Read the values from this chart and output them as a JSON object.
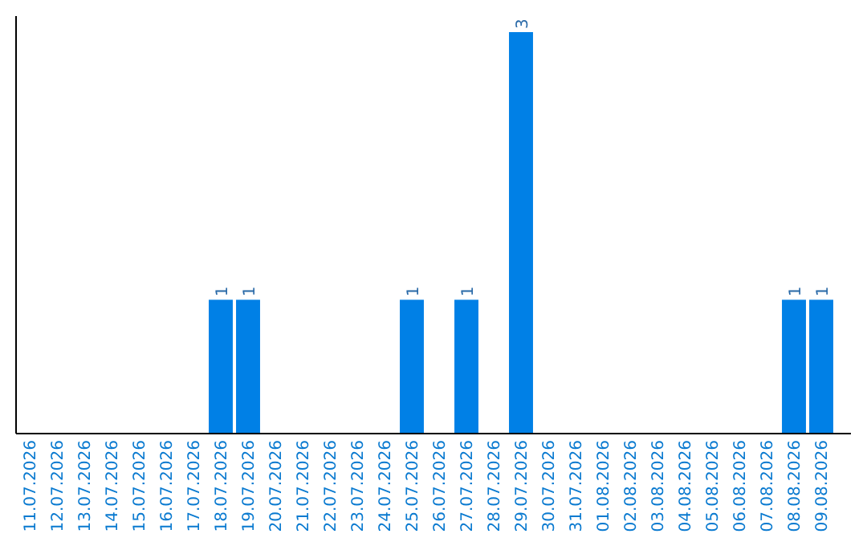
{
  "chart_data": {
    "type": "bar",
    "categories": [
      "11.07.2026",
      "12.07.2026",
      "13.07.2026",
      "14.07.2026",
      "15.07.2026",
      "16.07.2026",
      "17.07.2026",
      "18.07.2026",
      "19.07.2026",
      "20.07.2026",
      "21.07.2026",
      "22.07.2026",
      "23.07.2026",
      "24.07.2026",
      "25.07.2026",
      "26.07.2026",
      "27.07.2026",
      "28.07.2026",
      "29.07.2026",
      "30.07.2026",
      "31.07.2026",
      "01.08.2026",
      "02.08.2026",
      "03.08.2026",
      "04.08.2026",
      "05.08.2026",
      "06.08.2026",
      "07.08.2026",
      "08.08.2026",
      "09.08.2026"
    ],
    "values": [
      0,
      0,
      0,
      0,
      0,
      0,
      0,
      1,
      1,
      0,
      0,
      0,
      0,
      0,
      1,
      0,
      1,
      0,
      3,
      0,
      0,
      0,
      0,
      0,
      0,
      0,
      0,
      0,
      1,
      1
    ],
    "value_labels": [
      null,
      null,
      null,
      null,
      null,
      null,
      null,
      "1",
      "1",
      null,
      null,
      null,
      null,
      null,
      "1",
      null,
      "1",
      null,
      "3",
      null,
      null,
      null,
      null,
      null,
      null,
      null,
      null,
      null,
      "1",
      "1"
    ],
    "color": "#0080e6"
  }
}
